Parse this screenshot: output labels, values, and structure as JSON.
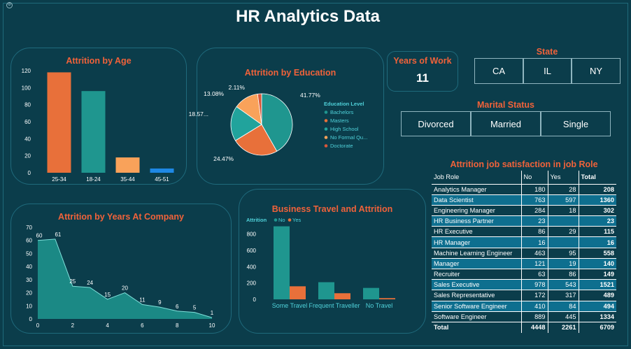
{
  "page": {
    "title": "HR Analytics Data"
  },
  "years_of_work": {
    "label": "Years of Work",
    "value": "11"
  },
  "state": {
    "title": "State",
    "options": [
      "CA",
      "IL",
      "NY"
    ]
  },
  "marital": {
    "title": "Marital Status",
    "options": [
      "Divorced",
      "Married",
      "Single"
    ]
  },
  "job_table": {
    "title": "Attrition job satisfaction in job Role",
    "headers": [
      "Job Role",
      "No",
      "Yes",
      "Total"
    ],
    "rows": [
      [
        "Analytics Manager",
        "180",
        "28",
        "208"
      ],
      [
        "Data Scientist",
        "763",
        "597",
        "1360"
      ],
      [
        "Engineering Manager",
        "284",
        "18",
        "302"
      ],
      [
        "HR Business Partner",
        "23",
        "",
        "23"
      ],
      [
        "HR Executive",
        "86",
        "29",
        "115"
      ],
      [
        "HR Manager",
        "16",
        "",
        "16"
      ],
      [
        "Machine Learning Engineer",
        "463",
        "95",
        "558"
      ],
      [
        "Manager",
        "121",
        "19",
        "140"
      ],
      [
        "Recruiter",
        "63",
        "86",
        "149"
      ],
      [
        "Sales Executive",
        "978",
        "543",
        "1521"
      ],
      [
        "Sales Representative",
        "172",
        "317",
        "489"
      ],
      [
        "Senior Software Engineer",
        "410",
        "84",
        "494"
      ],
      [
        "Software Engineer",
        "889",
        "445",
        "1334"
      ]
    ],
    "total": [
      "Total",
      "4448",
      "2261",
      "6709"
    ],
    "highlight_rows": [
      1,
      3,
      5,
      7,
      9,
      11
    ]
  },
  "chart_data": [
    {
      "id": "age",
      "type": "bar",
      "title": "Attrition by Age",
      "categories": [
        "25-34",
        "18-24",
        "35-44",
        "45-51"
      ],
      "values": [
        118,
        96,
        18,
        5
      ],
      "colors": [
        "#e8703a",
        "#1f968f",
        "#f9a25a",
        "#1e88e5"
      ],
      "ylim": [
        0,
        120
      ],
      "yticks": [
        0,
        20,
        40,
        60,
        80,
        100,
        120
      ]
    },
    {
      "id": "education",
      "type": "pie",
      "title": "Attrition by Education",
      "legend_title": "Education Level",
      "slices": [
        {
          "name": "Bachelors",
          "value": 41.77,
          "label": "41.77%",
          "color": "#1f968f"
        },
        {
          "name": "Masters",
          "value": 24.47,
          "label": "24.47%",
          "color": "#e8703a"
        },
        {
          "name": "High School",
          "value": 18.57,
          "label": "18.57...",
          "color": "#21a39c"
        },
        {
          "name": "No Formal Qu...",
          "value": 13.08,
          "label": "13.08%",
          "color": "#f9a25a"
        },
        {
          "name": "Doctorate",
          "value": 2.11,
          "label": "2.11%",
          "color": "#d9573a"
        }
      ]
    },
    {
      "id": "years",
      "type": "area",
      "title": "Attrition by Years At Company",
      "x": [
        0,
        1,
        2,
        3,
        4,
        5,
        6,
        7,
        8,
        9,
        10
      ],
      "values": [
        60,
        61,
        25,
        24,
        15,
        20,
        11,
        9,
        6,
        5,
        1
      ],
      "labels": [
        "60",
        "61",
        "25",
        "24",
        "15",
        "20",
        "11",
        "9",
        "6",
        "5",
        "1"
      ],
      "xlim": [
        0,
        10
      ],
      "xticks": [
        0,
        2,
        4,
        6,
        8,
        10
      ],
      "ylim": [
        0,
        70
      ],
      "yticks": [
        0,
        10,
        20,
        30,
        40,
        50,
        60,
        70
      ],
      "color": "#1f968f"
    },
    {
      "id": "travel",
      "type": "bar",
      "title": "Business Travel and Attrition",
      "legend_title": "Attrition",
      "categories": [
        "Some Travel",
        "Frequent Traveller",
        "No Travel"
      ],
      "series": [
        {
          "name": "No",
          "values": [
            895,
            210,
            140
          ],
          "color": "#1f968f"
        },
        {
          "name": "Yes",
          "values": [
            160,
            75,
            15
          ],
          "color": "#e8703a"
        }
      ],
      "ylim": [
        0,
        900
      ],
      "yticks": [
        0,
        200,
        400,
        600,
        800
      ]
    }
  ]
}
